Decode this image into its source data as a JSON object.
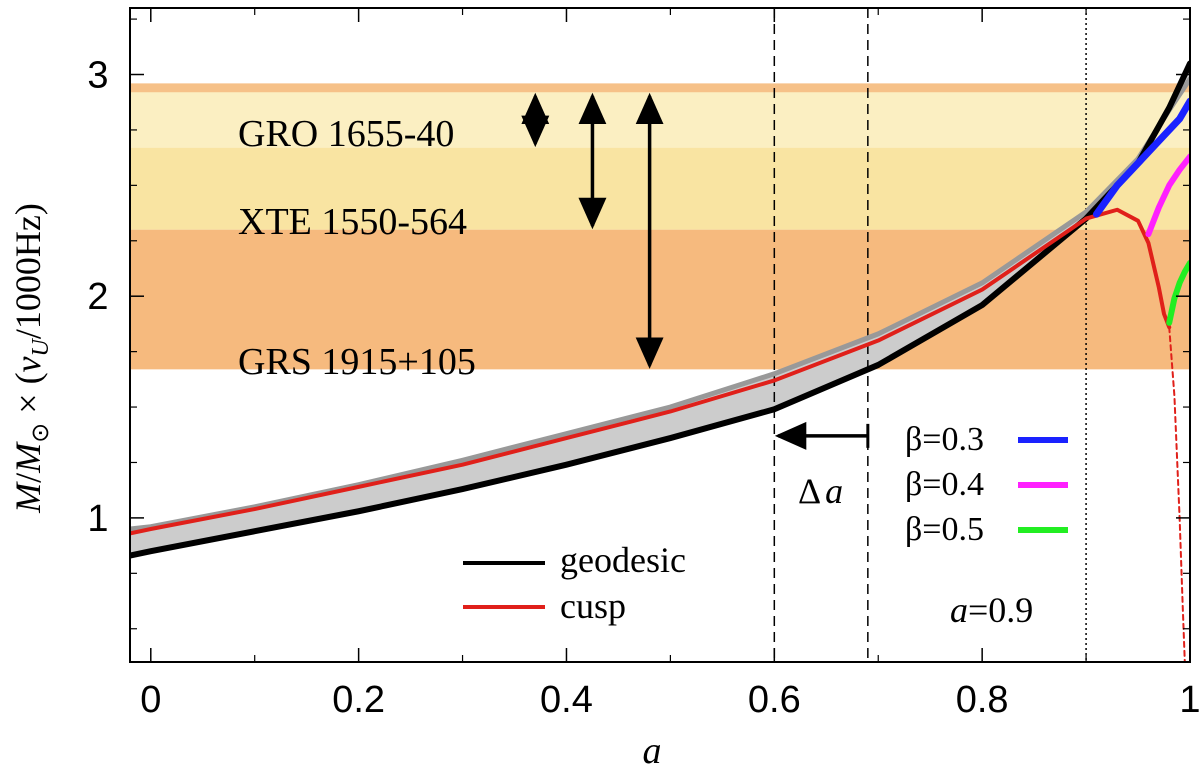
{
  "chart_data": {
    "type": "line",
    "title": "",
    "xlabel": "a",
    "ylabel": "M/M⊙ × (νU/1000Hz)",
    "xlim": [
      -0.02,
      1.0
    ],
    "ylim": [
      0.35,
      3.3
    ],
    "x_ticks": [
      "0",
      "0.2",
      "0.4",
      "0.6",
      "0.8",
      "1"
    ],
    "x_tick_values": [
      0,
      0.2,
      0.4,
      0.6,
      0.8,
      1.0
    ],
    "y_ticks": [
      "1",
      "2",
      "3"
    ],
    "y_tick_values": [
      1,
      2,
      3
    ],
    "bands": [
      {
        "name": "GRO 1655-40",
        "y0": 2.67,
        "y1": 2.95,
        "color": "#fbefc2"
      },
      {
        "name": "XTE 1550-564",
        "y0": 2.3,
        "y1": 2.67,
        "color": "#f9e4a2"
      },
      {
        "name": "GRS 1915+105",
        "y0": 1.67,
        "y1": 2.3,
        "color": "#f6ba7e"
      },
      {
        "name": "top-edge",
        "y0": 2.92,
        "y1": 2.96,
        "color": "#f6c188"
      }
    ],
    "ranges": [
      {
        "name": "GRO 1655-40",
        "x": 0.37,
        "y0": 2.67,
        "y1": 2.92
      },
      {
        "name": "XTE 1550-564",
        "x": 0.425,
        "y0": 2.3,
        "y1": 2.92
      },
      {
        "name": "GRS 1915+105",
        "x": 0.48,
        "y0": 1.67,
        "y1": 2.92
      }
    ],
    "vlines": [
      {
        "name": "dashed-1",
        "x": 0.6,
        "style": "dashed"
      },
      {
        "name": "dashed-2",
        "x": 0.69,
        "style": "dashed"
      },
      {
        "name": "dotted",
        "x": 0.9,
        "style": "dotted"
      }
    ],
    "delta_a_arrow": {
      "x_from": 0.69,
      "x_to": 0.6,
      "y": 1.37,
      "label": "Δa"
    },
    "series": [
      {
        "name": "geodesic",
        "color": "#000000",
        "width": 6,
        "x": [
          -0.02,
          0.0,
          0.1,
          0.2,
          0.3,
          0.4,
          0.5,
          0.6,
          0.7,
          0.8,
          0.9,
          0.95,
          0.98,
          1.0
        ],
        "y": [
          0.83,
          0.85,
          0.94,
          1.03,
          1.13,
          1.24,
          1.36,
          1.49,
          1.69,
          1.96,
          2.35,
          2.6,
          2.85,
          3.05
        ]
      },
      {
        "name": "upper-grey",
        "color": "#999999",
        "width": 5,
        "x": [
          -0.02,
          0.0,
          0.1,
          0.2,
          0.3,
          0.4,
          0.5,
          0.6,
          0.7,
          0.8,
          0.9,
          0.95,
          0.98,
          1.0
        ],
        "y": [
          0.95,
          0.96,
          1.05,
          1.15,
          1.26,
          1.38,
          1.5,
          1.65,
          1.83,
          2.06,
          2.38,
          2.62,
          2.84,
          2.98
        ]
      },
      {
        "name": "cusp",
        "color": "#e0201a",
        "width": 4,
        "x": [
          -0.02,
          0.0,
          0.1,
          0.2,
          0.3,
          0.4,
          0.5,
          0.6,
          0.7,
          0.8,
          0.9,
          0.93,
          0.95,
          0.96,
          0.97,
          0.975,
          0.98
        ],
        "y": [
          0.93,
          0.95,
          1.04,
          1.14,
          1.24,
          1.36,
          1.48,
          1.62,
          1.8,
          2.03,
          2.35,
          2.39,
          2.34,
          2.24,
          2.04,
          1.92,
          1.86
        ]
      },
      {
        "name": "cusp-dashed",
        "color": "#e0201a",
        "width": 2,
        "dashed": true,
        "x": [
          0.98,
          0.985,
          0.99,
          0.993,
          0.995
        ],
        "y": [
          1.86,
          1.55,
          1.0,
          0.6,
          0.35
        ]
      },
      {
        "name": "β=0.3",
        "color": "#1a22ff",
        "width": 7,
        "x": [
          0.91,
          0.93,
          0.95,
          0.97,
          0.99,
          1.0
        ],
        "y": [
          2.37,
          2.5,
          2.6,
          2.7,
          2.8,
          2.88
        ]
      },
      {
        "name": "β=0.4",
        "color": "#ff20ff",
        "width": 6,
        "x": [
          0.96,
          0.97,
          0.98,
          0.99,
          1.0
        ],
        "y": [
          2.28,
          2.4,
          2.5,
          2.57,
          2.63
        ]
      },
      {
        "name": "β=0.5",
        "color": "#22ee22",
        "width": 6,
        "x": [
          0.98,
          0.985,
          0.99,
          0.995,
          1.0
        ],
        "y": [
          1.88,
          1.99,
          2.06,
          2.11,
          2.15
        ]
      }
    ],
    "legend": {
      "placement": "bottom-center",
      "entries": [
        {
          "label": "geodesic",
          "color": "#000000"
        },
        {
          "label": "cusp",
          "color": "#e0201a"
        }
      ]
    },
    "beta_legend": {
      "placement": "right",
      "entries": [
        {
          "label": "β=0.3",
          "color": "#1a22ff"
        },
        {
          "label": "β=0.4",
          "color": "#ff20ff"
        },
        {
          "label": "β=0.5",
          "color": "#22ee22"
        }
      ]
    },
    "annotations": {
      "a_value": {
        "prefix": "a",
        "rest": "=0.9"
      },
      "delta_symbol": "Δ",
      "delta_var": "a"
    },
    "ylabel_parts": {
      "M": "M",
      "slash": "/",
      "Msun": "M",
      "sun_sub": "⊙",
      "times": " × (",
      "nu": "ν",
      "nu_sub": "U",
      "tail": "/1000Hz)"
    }
  }
}
